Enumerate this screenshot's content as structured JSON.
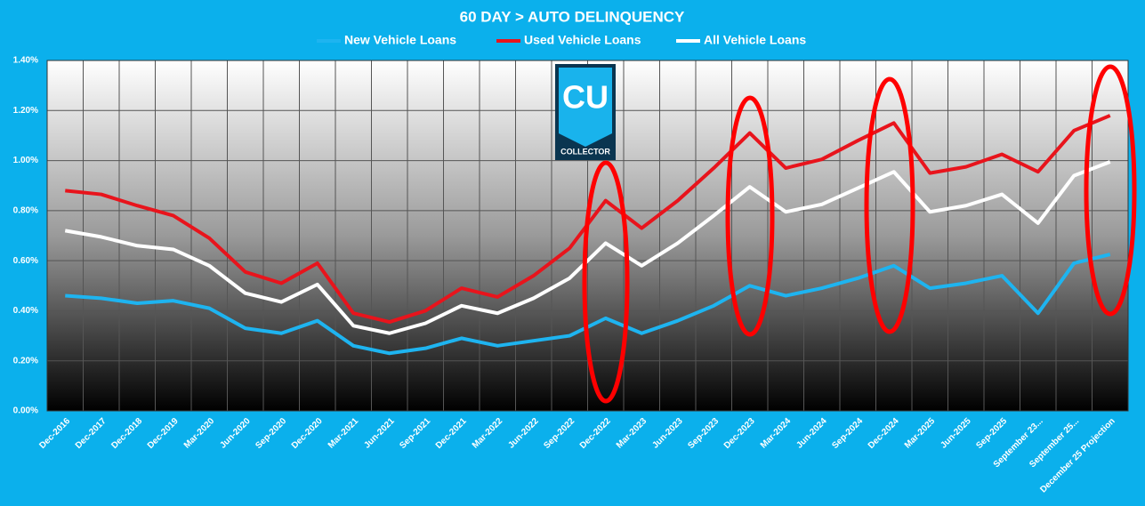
{
  "chart_data": {
    "type": "line",
    "title": "60 DAY > AUTO DELINQUENCY",
    "categories": [
      "Dec-2016",
      "Dec-2017",
      "Dec-2018",
      "Dec-2019",
      "Mar-2020",
      "Jun-2020",
      "Sep-2020",
      "Dec-2020",
      "Mar-2021",
      "Jun-2021",
      "Sep-2021",
      "Dec-2021",
      "Mar-2022",
      "Jun-2022",
      "Sep-2022",
      "Dec-2022",
      "Mar-2023",
      "Jun-2023",
      "Sep-2023",
      "Dec-2023",
      "Mar-2024",
      "Jun-2024",
      "Sep-2024",
      "Dec-2024",
      "Mar-2025",
      "Jun-2025",
      "Sep-2025",
      "September 23...",
      "September 25...",
      "December 25 Projection"
    ],
    "series": [
      {
        "name": "New Vehicle Loans",
        "color": "#1eb4f0",
        "values": [
          0.46,
          0.45,
          0.43,
          0.44,
          0.41,
          0.33,
          0.31,
          0.36,
          0.26,
          0.23,
          0.25,
          0.29,
          0.26,
          0.28,
          0.3,
          0.37,
          0.31,
          0.36,
          0.42,
          0.5,
          0.46,
          0.49,
          0.53,
          0.58,
          0.49,
          0.51,
          0.54,
          0.39,
          0.59,
          0.625
        ]
      },
      {
        "name": "Used Vehicle Loans",
        "color": "#e8141c",
        "values": [
          0.88,
          0.865,
          0.82,
          0.78,
          0.69,
          0.555,
          0.51,
          0.59,
          0.39,
          0.355,
          0.4,
          0.49,
          0.455,
          0.54,
          0.65,
          0.84,
          0.73,
          0.84,
          0.97,
          1.11,
          0.97,
          1.005,
          1.08,
          1.15,
          0.95,
          0.975,
          1.025,
          0.955,
          1.12,
          1.18
        ]
      },
      {
        "name": "All Vehicle Loans",
        "color": "#ffffff",
        "values": [
          0.72,
          0.695,
          0.66,
          0.645,
          0.58,
          0.47,
          0.435,
          0.505,
          0.34,
          0.31,
          0.35,
          0.42,
          0.39,
          0.45,
          0.53,
          0.67,
          0.58,
          0.67,
          0.78,
          0.895,
          0.795,
          0.825,
          0.89,
          0.955,
          0.795,
          0.82,
          0.865,
          0.75,
          0.94,
          0.995
        ]
      }
    ],
    "ylim": [
      0,
      1.4
    ],
    "yticks": [
      {
        "value": 0,
        "label": "0.00%"
      },
      {
        "value": 0.2,
        "label": "0.20%"
      },
      {
        "value": 0.4,
        "label": "0.40%"
      },
      {
        "value": 0.6,
        "label": "0.60%"
      },
      {
        "value": 0.8,
        "label": "0.80%"
      },
      {
        "value": 1.0,
        "label": "1.00%"
      },
      {
        "value": 1.2,
        "label": "1.20%"
      },
      {
        "value": 1.4,
        "label": "1.40%"
      }
    ],
    "grid": true,
    "logo": {
      "main": "CU",
      "sub": "COLLECTOR"
    }
  }
}
